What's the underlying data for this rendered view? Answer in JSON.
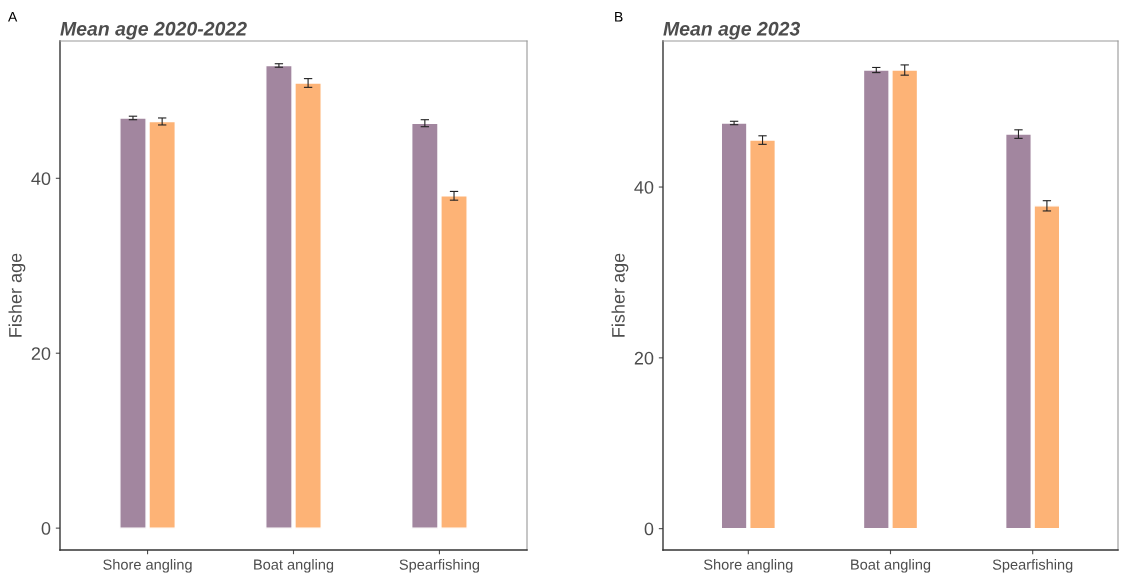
{
  "chart_data": [
    {
      "type": "bar",
      "title": "Mean age 2020-2022",
      "ylabel": "Fisher age",
      "annotations": [
        "A"
      ],
      "categories": [
        "Shore angling",
        "Boat angling",
        "Spearfishing"
      ],
      "ylim": [
        -2.5,
        55.7
      ],
      "yticks": [
        0,
        20,
        40
      ],
      "grid": false,
      "legend": false,
      "series": [
        {
          "color": "#a2869f",
          "values": [
            46.9,
            52.9,
            46.3
          ],
          "errors": [
            0.2,
            0.2,
            0.4
          ]
        },
        {
          "color": "#fdb376",
          "values": [
            46.5,
            50.9,
            38.0
          ],
          "errors": [
            0.4,
            0.5,
            0.5
          ]
        }
      ]
    },
    {
      "type": "bar",
      "title": "Mean age 2023",
      "ylabel": "Fisher age",
      "annotations": [
        "B"
      ],
      "categories": [
        "Shore angling",
        "Boat angling",
        "Spearfishing"
      ],
      "ylim": [
        -2.5,
        57.1
      ],
      "yticks": [
        0,
        20,
        40
      ],
      "grid": false,
      "legend": false,
      "series": [
        {
          "color": "#a2869f",
          "values": [
            47.5,
            53.7,
            46.2
          ],
          "errors": [
            0.2,
            0.3,
            0.5
          ]
        },
        {
          "color": "#fdb376",
          "values": [
            45.5,
            53.7,
            37.8
          ],
          "errors": [
            0.5,
            0.6,
            0.6
          ]
        }
      ]
    }
  ]
}
